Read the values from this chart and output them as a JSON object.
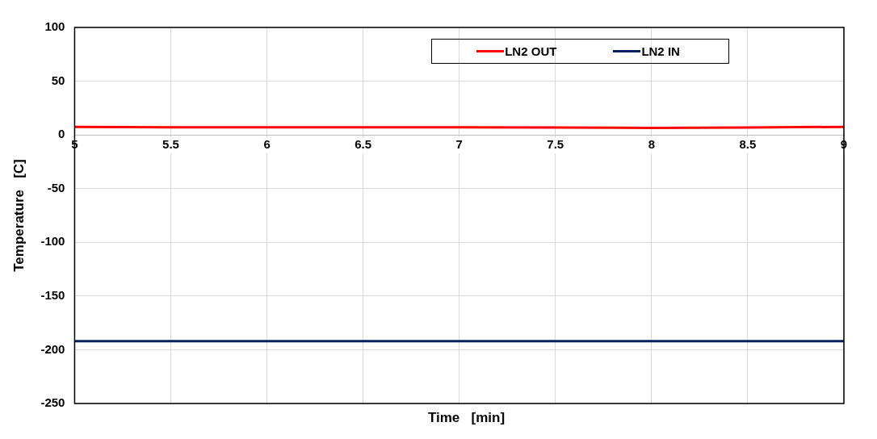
{
  "chart_data": {
    "type": "line",
    "xlabel": "Time   [min]",
    "ylabel": "Temperature   [C]",
    "x": [
      5,
      5.5,
      6,
      6.5,
      7,
      7.5,
      8,
      8.5,
      9
    ],
    "series": [
      {
        "name": "LN2 OUT",
        "color": "#ff0000",
        "values": [
          7.5,
          7,
          7,
          7,
          7,
          6.8,
          6.5,
          6.8,
          7.5
        ]
      },
      {
        "name": "LN2 IN",
        "color": "#002060",
        "values": [
          -192,
          -192,
          -192,
          -192,
          -192,
          -192,
          -192,
          -192,
          -192
        ]
      }
    ],
    "xlim": [
      5,
      9
    ],
    "xticks": [
      5,
      5.5,
      6,
      6.5,
      7,
      7.5,
      8,
      8.5,
      9
    ],
    "ylim": [
      -250,
      100
    ],
    "yticks": [
      -250,
      -200,
      -150,
      -100,
      -50,
      0,
      50,
      100
    ],
    "grid": true,
    "legend": "top",
    "marker": "none",
    "line_style": "solid"
  }
}
